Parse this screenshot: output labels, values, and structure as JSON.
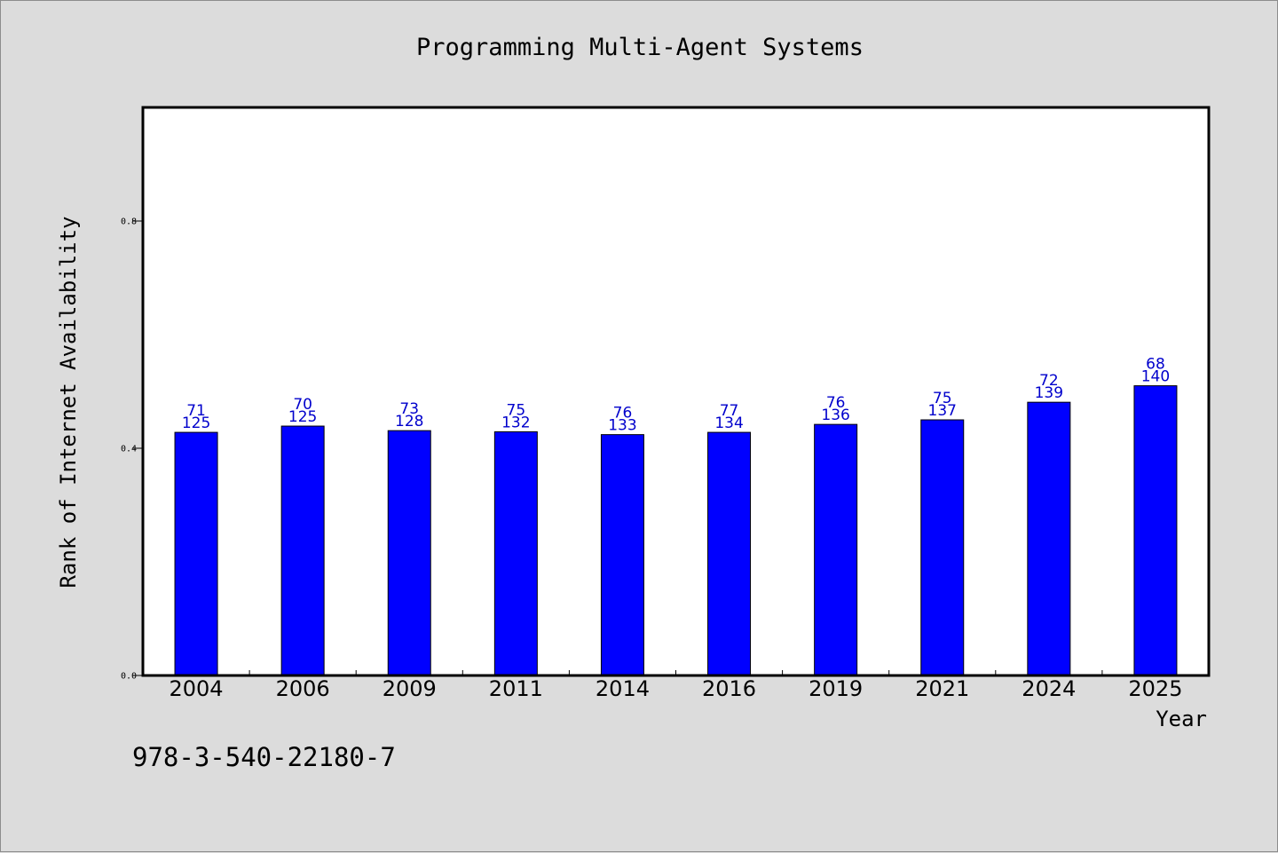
{
  "chart_data": {
    "type": "bar",
    "title": "Programming Multi-Agent Systems",
    "xlabel": "Year",
    "ylabel": "Rank of Internet Availability",
    "categories": [
      "2004",
      "2006",
      "2009",
      "2011",
      "2014",
      "2016",
      "2019",
      "2021",
      "2024",
      "2025"
    ],
    "values": [
      0.428,
      0.439,
      0.431,
      0.429,
      0.424,
      0.428,
      0.442,
      0.45,
      0.481,
      0.51
    ],
    "label_top": [
      "71",
      "70",
      "73",
      "75",
      "76",
      "77",
      "76",
      "75",
      "72",
      "68"
    ],
    "label_bottom": [
      "125",
      "125",
      "128",
      "132",
      "133",
      "134",
      "136",
      "137",
      "139",
      "140"
    ],
    "ylim": [
      0,
      1.0
    ],
    "yticks": [
      {
        "value": 0.0,
        "label": "0.0"
      },
      {
        "value": 0.4,
        "label": "0.4"
      },
      {
        "value": 0.8,
        "label": "0.8"
      }
    ],
    "grid": false,
    "bar_color": "#0000ff",
    "label_color": "#0000cc"
  },
  "footer": {
    "code": "978-3-540-22180-7"
  }
}
